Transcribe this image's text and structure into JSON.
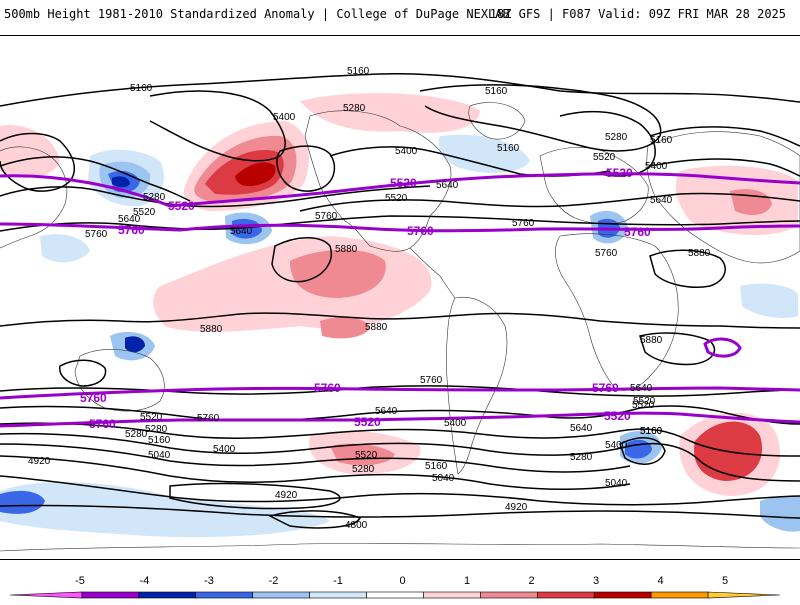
{
  "header": {
    "title": "500mb Height 1981-2010 Standardized Anomaly | College of DuPage NEXLAB",
    "model_info": "18Z GFS | F087 Valid: 09Z FRI MAR 28 2025"
  },
  "colorbar": {
    "labels": [
      "-5",
      "-4",
      "-3",
      "-2",
      "-1",
      "0",
      "1",
      "2",
      "3",
      "4",
      "5"
    ],
    "colors": [
      "#ff55ff",
      "#9900cc",
      "#0022aa",
      "#3a66e8",
      "#9cc4f0",
      "#d2e6fa",
      "#ffffff",
      "#ffd2d8",
      "#f08a92",
      "#dd3b44",
      "#b80000",
      "#ff9900",
      "#ffcc33"
    ]
  },
  "contour_labels": [
    "5160",
    "5160",
    "5160",
    "5400",
    "5280",
    "5400",
    "5160",
    "5280",
    "5160",
    "5400",
    "5520",
    "5640",
    "5520",
    "5640",
    "5280",
    "5520",
    "5640",
    "5760",
    "5640",
    "5760",
    "5880",
    "5760",
    "5880",
    "5880",
    "5880",
    "5880",
    "5760",
    "5760",
    "5640",
    "5520",
    "5520",
    "5280",
    "5160",
    "5040",
    "5760",
    "5640",
    "5400",
    "5400",
    "5520",
    "5280",
    "5160",
    "5040",
    "4920",
    "4920",
    "4800",
    "4920",
    "5400",
    "5280",
    "5160",
    "5040",
    "5640",
    "5520",
    "5160",
    "5280"
  ],
  "reference_labels": [
    "5520",
    "5520",
    "5520",
    "5760",
    "5760",
    "5760",
    "5760",
    "5760",
    "5760",
    "5760",
    "5520",
    "5520",
    "5520"
  ]
}
